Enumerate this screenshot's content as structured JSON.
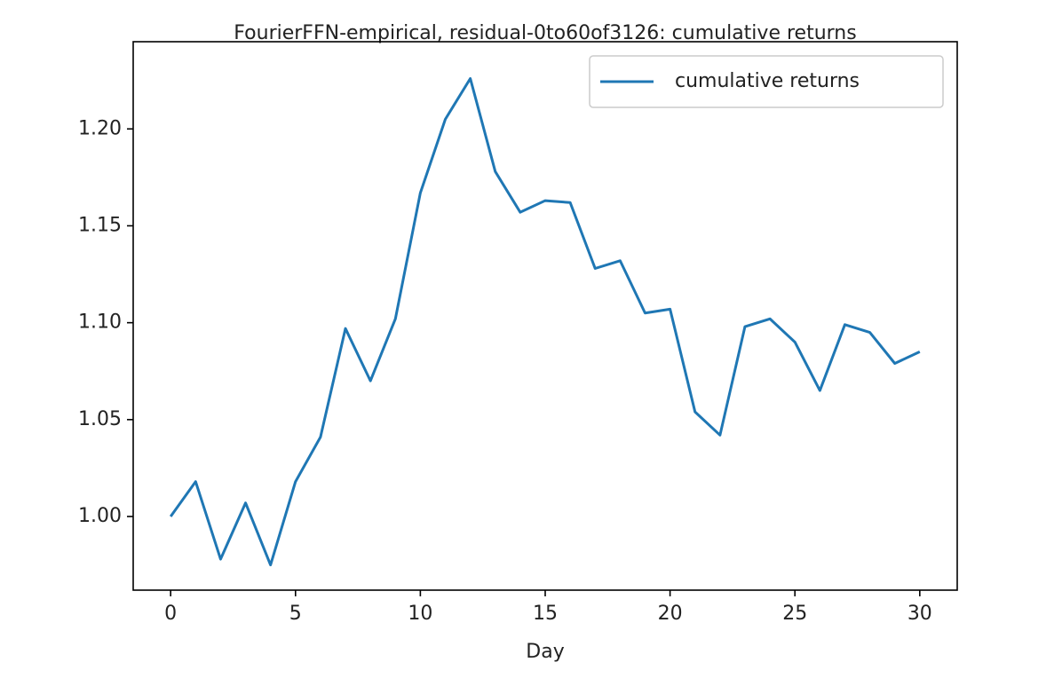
{
  "chart_data": {
    "type": "line",
    "title": "FourierFFN-empirical, residual-0to60of3126: cumulative returns",
    "x_label": "Day",
    "x": [
      0,
      1,
      2,
      3,
      4,
      5,
      6,
      7,
      8,
      9,
      10,
      11,
      12,
      13,
      14,
      15,
      16,
      17,
      18,
      19,
      20,
      21,
      22,
      23,
      24,
      25,
      26,
      27,
      28,
      29,
      30
    ],
    "series": [
      {
        "name": "cumulative returns",
        "color": "#1f77b4",
        "values": [
          1.0,
          1.018,
          0.978,
          1.007,
          0.975,
          1.018,
          1.041,
          1.097,
          1.07,
          1.102,
          1.167,
          1.205,
          1.226,
          1.178,
          1.157,
          1.163,
          1.162,
          1.128,
          1.132,
          1.105,
          1.107,
          1.054,
          1.042,
          1.098,
          1.102,
          1.09,
          1.065,
          1.099,
          1.095,
          1.079,
          1.085
        ]
      }
    ],
    "xlim": [
      -1.5,
      31.5
    ],
    "xticks": [
      0,
      5,
      10,
      15,
      20,
      25,
      30
    ],
    "ylim": [
      0.962,
      1.245
    ],
    "yticks": [
      {
        "value": 1,
        "label": "1.00"
      },
      1.05,
      {
        "value": 1.1,
        "label": "1.10"
      },
      1.15,
      {
        "value": 1.2,
        "label": "1.20"
      }
    ],
    "legend": "upper right",
    "grid": false
  }
}
